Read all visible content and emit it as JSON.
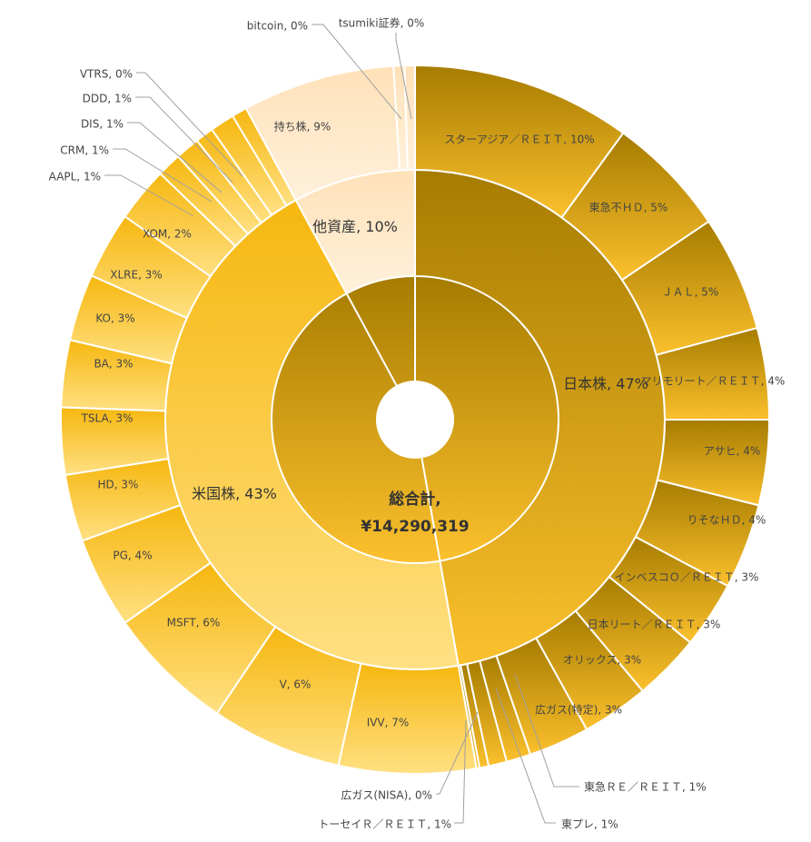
{
  "chart_data": {
    "type": "sunburst",
    "center": {
      "label": "総合計,",
      "value": "¥14,290,319"
    },
    "groups": [
      {
        "name": "日本株",
        "percent": 47,
        "label": "日本株, 47%",
        "palette": "jp",
        "items": [
          {
            "name": "スターアジア／ＲＥＩＴ",
            "percent": 10,
            "label": "スターアジア／ＲＥＩＴ, 10%"
          },
          {
            "name": "東急不ＨＤ",
            "percent": 5,
            "label": "東急不ＨＤ, 5%"
          },
          {
            "name": "ＪＡＬ",
            "percent": 5,
            "label": "ＪＡＬ, 5%"
          },
          {
            "name": "マリモリート／ＲＥＩＴ",
            "percent": 4,
            "label": "マリモリート／ＲＥＩＴ, 4%"
          },
          {
            "name": "アサヒ",
            "percent": 4,
            "label": "アサヒ, 4%"
          },
          {
            "name": "りそなＨＤ",
            "percent": 4,
            "label": "りそなＨＤ, 4%"
          },
          {
            "name": "インベスコＯ／ＲＥＩＴ",
            "percent": 3,
            "label": "インベスコＯ／ＲＥＩＴ, 3%"
          },
          {
            "name": "日本リート／ＲＥＩＴ",
            "percent": 3,
            "label": "日本リート／ＲＥＩＴ, 3%"
          },
          {
            "name": "オリックス",
            "percent": 3,
            "label": "オリックス, 3%"
          },
          {
            "name": "広ガス(特定)",
            "percent": 3,
            "label": "広ガス(特定), 3%"
          },
          {
            "name": "東急ＲＥ／ＲＥＩＴ",
            "percent": 1,
            "label": "東急ＲＥ／ＲＥＩＴ, 1%"
          },
          {
            "name": "東プレ",
            "percent": 1,
            "label": "東プレ, 1%"
          },
          {
            "name": "トーセイＲ／ＲＥＩＴ",
            "percent": 1,
            "label": "トーセイＲ／ＲＥＩＴ, 1%"
          },
          {
            "name": "広ガス(NISA)",
            "percent": 0,
            "label": "広ガス(NISA), 0%"
          }
        ]
      },
      {
        "name": "米国株",
        "percent": 43,
        "label": "米国株, 43%",
        "palette": "us",
        "items": [
          {
            "name": "IVV",
            "percent": 7,
            "label": "IVV, 7%"
          },
          {
            "name": "V",
            "percent": 6,
            "label": "V, 6%"
          },
          {
            "name": "MSFT",
            "percent": 6,
            "label": "MSFT, 6%"
          },
          {
            "name": "PG",
            "percent": 4,
            "label": "PG, 4%"
          },
          {
            "name": "HD",
            "percent": 3,
            "label": "HD, 3%"
          },
          {
            "name": "TSLA",
            "percent": 3,
            "label": "TSLA, 3%"
          },
          {
            "name": "BA",
            "percent": 3,
            "label": "BA, 3%"
          },
          {
            "name": "KO",
            "percent": 3,
            "label": "KO, 3%"
          },
          {
            "name": "XLRE",
            "percent": 3,
            "label": "XLRE, 3%"
          },
          {
            "name": "XOM",
            "percent": 2,
            "label": "XOM, 2%"
          },
          {
            "name": "AAPL",
            "percent": 1,
            "label": "AAPL, 1%"
          },
          {
            "name": "CRM",
            "percent": 1,
            "label": "CRM, 1%"
          },
          {
            "name": "DIS",
            "percent": 1,
            "label": "DIS, 1%"
          },
          {
            "name": "DDD",
            "percent": 1,
            "label": "DDD, 1%"
          },
          {
            "name": "VTRS",
            "percent": 0,
            "label": "VTRS, 0%"
          }
        ]
      },
      {
        "name": "他資産",
        "percent": 10,
        "label": "他資産, 10%",
        "palette": "other",
        "items": [
          {
            "name": "持ち株",
            "percent": 9,
            "label": "持ち株, 9%"
          },
          {
            "name": "bitcoin",
            "percent": 0,
            "label": "bitcoin, 0%"
          },
          {
            "name": "tsumiki証券",
            "percent": 0,
            "label": "tsumiki証券, 0%"
          }
        ]
      }
    ],
    "colors": {
      "center_top": "#a67c00",
      "center_bottom": "#fbc02d",
      "jp_top": "#a67c00",
      "jp_bottom": "#fbc02d",
      "us_top": "#f6b70f",
      "us_bottom": "#ffe082",
      "other_top": "#ffe1b8",
      "other_bottom": "#fff1dc",
      "separator": "#ffffff",
      "leader": "#a0a0a0"
    }
  }
}
